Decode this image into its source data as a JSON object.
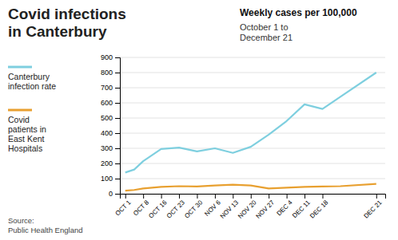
{
  "chart_data": {
    "type": "line",
    "title": "Covid infections\nin Canterbury",
    "subtitle": "Weekly cases per 100,000",
    "annotations": [
      "October 1 to\nDecember 21",
      "Source:\nPublic Health England"
    ],
    "x": [
      0,
      0.5,
      1,
      2,
      3,
      4,
      5,
      6,
      7,
      8,
      9,
      10,
      11,
      12,
      14
    ],
    "series": [
      {
        "name": "Canterbury\ninfection rate",
        "color": "#7ecfdf",
        "values": [
          140,
          160,
          215,
          295,
          305,
          280,
          300,
          270,
          310,
          390,
          480,
          590,
          560,
          640,
          800
        ]
      },
      {
        "name": "Covid\npatients in\nEast Kent\nHospitals",
        "color": "#e8a030",
        "values": [
          20,
          25,
          35,
          45,
          50,
          48,
          55,
          60,
          55,
          35,
          40,
          45,
          48,
          50,
          65
        ]
      }
    ],
    "xlim": [
      -0.3,
      14.5
    ],
    "xticks": [
      {
        "value": 0,
        "label": "OCT 1"
      },
      {
        "value": 1,
        "label": "OCT 8"
      },
      {
        "value": 2,
        "label": "OCT 16"
      },
      {
        "value": 3,
        "label": "OCT 23"
      },
      {
        "value": 4,
        "label": "OCT 30"
      },
      {
        "value": 5,
        "label": "NOV 6"
      },
      {
        "value": 6,
        "label": "NOV 13"
      },
      {
        "value": 7,
        "label": "NOV 20"
      },
      {
        "value": 8,
        "label": "NOV 27"
      },
      {
        "value": 9,
        "label": "DEC 4"
      },
      {
        "value": 10,
        "label": "DEC 11"
      },
      {
        "value": 11,
        "label": "DEC 18"
      },
      {
        "value": 14,
        "label": "DEC 21"
      }
    ],
    "ylim": [
      0,
      900
    ],
    "yticks": [
      0,
      100,
      200,
      300,
      400,
      500,
      600,
      700,
      800,
      900
    ],
    "grid": true,
    "legend": "left"
  }
}
